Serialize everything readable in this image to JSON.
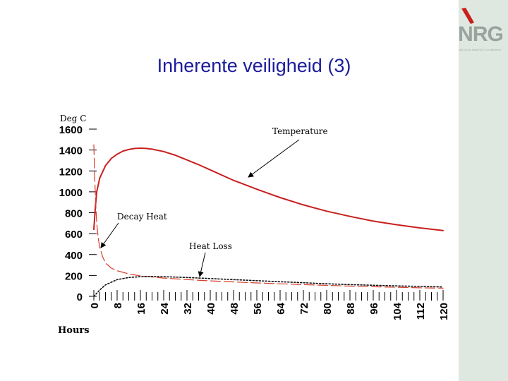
{
  "slide": {
    "title": "Inherente veiligheid (3)",
    "logo_text": "NRG",
    "logo_subtext": "AN ECN ENERGY COMPANY"
  },
  "colors": {
    "title": "#1c1c9c",
    "temperature": "#c8201e",
    "decay_heat": "#d83c2c",
    "heat_loss": "#111111",
    "sidebar": "#dfe8e0",
    "logo_accent": "#c8201e"
  },
  "chart_data": {
    "type": "line",
    "ylabel": "Deg C",
    "xlabel": "Hours",
    "ylim": [
      0,
      1600
    ],
    "xlim": [
      0,
      120
    ],
    "y_ticks": [
      "0",
      "200",
      "400",
      "600",
      "800",
      "1000",
      "1200",
      "1400",
      "1600"
    ],
    "x_ticks": [
      "0",
      "8",
      "16",
      "24",
      "32",
      "40",
      "48",
      "56",
      "64",
      "72",
      "80",
      "88",
      "96",
      "104",
      "112",
      "120"
    ],
    "annotations": [
      "Temperature",
      "Decay Heat",
      "Heat Loss"
    ],
    "series": [
      {
        "name": "Temperature",
        "style": "solid",
        "x": [
          0,
          0.5,
          1,
          2,
          4,
          6,
          8,
          10,
          12,
          14,
          16,
          18,
          20,
          24,
          28,
          32,
          36,
          40,
          48,
          56,
          64,
          72,
          80,
          88,
          96,
          104,
          112,
          120
        ],
        "y": [
          640,
          850,
          1000,
          1130,
          1250,
          1320,
          1360,
          1390,
          1405,
          1415,
          1418,
          1415,
          1408,
          1385,
          1350,
          1305,
          1260,
          1210,
          1110,
          1025,
          945,
          875,
          815,
          765,
          720,
          685,
          655,
          630
        ]
      },
      {
        "name": "Decay Heat",
        "style": "dashed",
        "x": [
          0,
          0.3,
          0.6,
          1,
          1.5,
          2,
          3,
          4,
          6,
          8,
          12,
          16,
          24,
          32,
          40,
          48,
          56,
          64,
          72,
          80,
          88,
          96,
          104,
          112,
          120
        ],
        "y": [
          1450,
          1150,
          900,
          700,
          560,
          470,
          380,
          320,
          270,
          245,
          215,
          195,
          175,
          160,
          148,
          138,
          128,
          120,
          112,
          105,
          98,
          92,
          87,
          82,
          78
        ]
      },
      {
        "name": "Heat Loss",
        "style": "dotted",
        "x": [
          0,
          2,
          4,
          8,
          12,
          16,
          20,
          24,
          32,
          40,
          48,
          56,
          64,
          72,
          80,
          88,
          96,
          104,
          112,
          120
        ],
        "y": [
          0,
          60,
          110,
          160,
          180,
          188,
          190,
          188,
          180,
          170,
          160,
          150,
          140,
          130,
          120,
          112,
          106,
          100,
          95,
          90
        ]
      }
    ]
  }
}
